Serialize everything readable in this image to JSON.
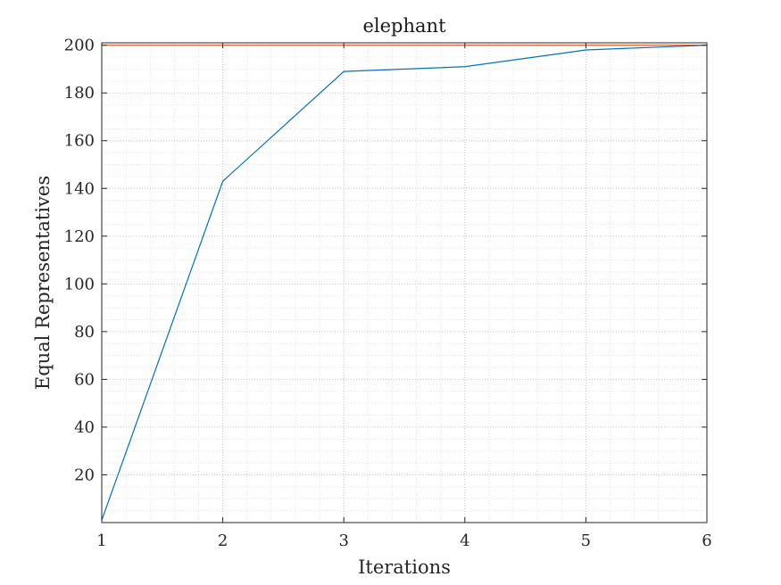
{
  "chart_data": {
    "type": "line",
    "title": "elephant",
    "xlabel": "Iterations",
    "ylabel": "Equal Representatives",
    "xlim": [
      1,
      6
    ],
    "ylim": [
      0,
      201
    ],
    "xticks": [
      1,
      2,
      3,
      4,
      5,
      6
    ],
    "yticks": [
      20,
      40,
      60,
      80,
      100,
      120,
      140,
      160,
      180,
      200
    ],
    "grid": "on (major and minor, dotted)",
    "series": [
      {
        "color": "#0072BD",
        "x": [
          1,
          2,
          3,
          4,
          5,
          6
        ],
        "values": [
          1,
          143,
          189,
          191,
          198,
          200
        ]
      }
    ],
    "reference_lines": [
      {
        "axis": "y",
        "value": 200,
        "color": "#D95319"
      }
    ]
  }
}
